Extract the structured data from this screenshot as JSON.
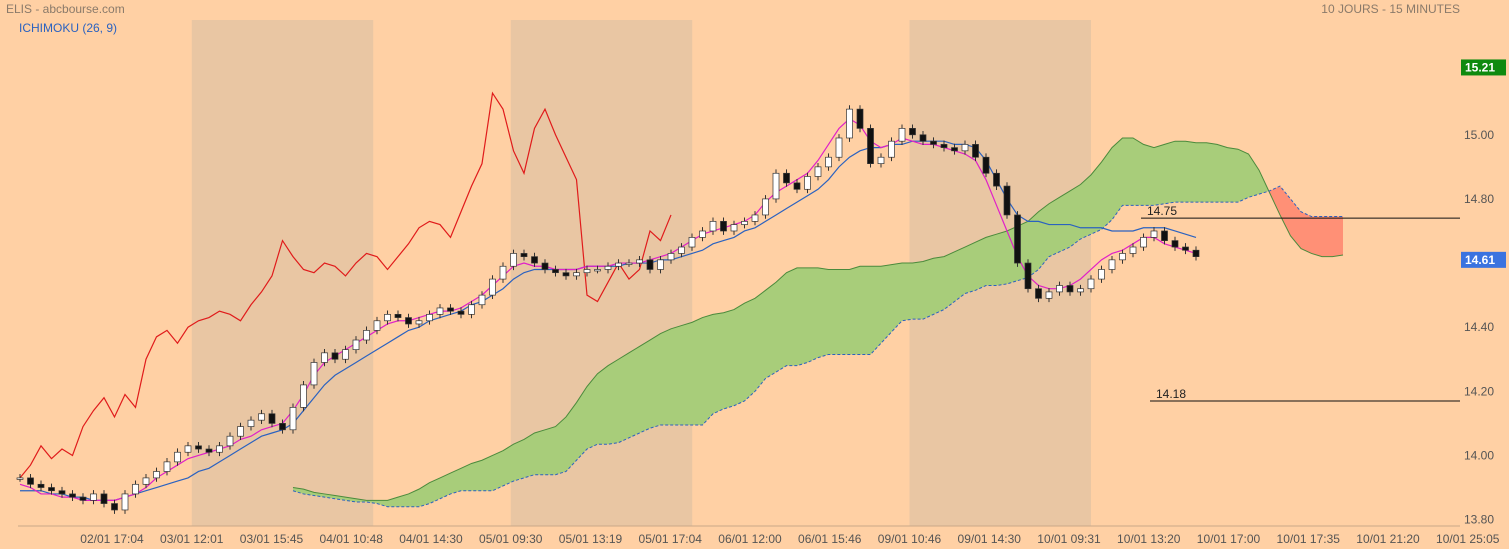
{
  "header": {
    "left": "ELIS - abcbourse.com",
    "right": "10 JOURS - 15 MINUTES",
    "indicator": "ICHIMOKU (26, 9)"
  },
  "colors": {
    "background": "#ffd0a4",
    "shade": "#e9c6a3",
    "kumo_bull": "#a8cd7a",
    "kumo_bear": "#ff9076",
    "chikou": "#e01b1b",
    "tenkan": "#e020c8",
    "kijun": "#2b62c0",
    "last_price_badge": "#3a73e0",
    "high_badge": "#0f8a0f"
  },
  "chart_data": {
    "type": "candlestick",
    "title": "ELIS",
    "subtitle": "10 JOURS - 15 MINUTES",
    "indicator": "ICHIMOKU (26, 9)",
    "y_ticks": [
      "15.00",
      "14.80",
      "14.60",
      "14.40",
      "14.20",
      "14.00",
      "13.80"
    ],
    "ylim": [
      13.78,
      15.28
    ],
    "x_ticks": [
      "02/01 17:04",
      "03/01 12:01",
      "03/01 15:45",
      "04/01 10:48",
      "04/01 14:30",
      "05/01 09:30",
      "05/01 13:19",
      "05/01 17:04",
      "06/01 12:00",
      "06/01 15:46",
      "09/01 10:46",
      "09/01 14:30",
      "10/01 09:31",
      "10/01 13:20",
      "10/01 17:00",
      "10/01 17:35",
      "10/01 21:20",
      "10/01 25:05"
    ],
    "high_badge": "15.21",
    "last_badge": "14.61",
    "levels": [
      {
        "label": "14.75",
        "value": 14.74
      },
      {
        "label": "14.18",
        "value": 14.17
      }
    ],
    "shaded_sessions": [
      [
        1,
        3
      ],
      [
        5,
        7
      ],
      [
        10,
        12
      ]
    ],
    "price": [
      13.93,
      13.91,
      13.9,
      13.89,
      13.88,
      13.87,
      13.86,
      13.88,
      13.85,
      13.83,
      13.88,
      13.91,
      13.93,
      13.95,
      13.98,
      14.01,
      14.03,
      14.02,
      14.01,
      14.03,
      14.06,
      14.09,
      14.11,
      14.13,
      14.1,
      14.08,
      14.15,
      14.22,
      14.29,
      14.32,
      14.3,
      14.33,
      14.36,
      14.39,
      14.42,
      14.44,
      14.43,
      14.41,
      14.42,
      14.44,
      14.46,
      14.45,
      14.44,
      14.47,
      14.5,
      14.55,
      14.59,
      14.63,
      14.62,
      14.6,
      14.58,
      14.57,
      14.56,
      14.57,
      14.58,
      14.58,
      14.59,
      14.6,
      14.6,
      14.61,
      14.58,
      14.61,
      14.63,
      14.65,
      14.68,
      14.7,
      14.73,
      14.7,
      14.72,
      14.73,
      14.75,
      14.8,
      14.88,
      14.85,
      14.83,
      14.87,
      14.9,
      14.93,
      14.99,
      15.08,
      15.02,
      14.91,
      14.93,
      14.98,
      15.02,
      15.0,
      14.98,
      14.97,
      14.96,
      14.95,
      14.97,
      14.93,
      14.88,
      14.84,
      14.75,
      14.6,
      14.52,
      14.49,
      14.51,
      14.53,
      14.51,
      14.52,
      14.55,
      14.58,
      14.61,
      14.63,
      14.65,
      14.68,
      14.7,
      14.67,
      14.65,
      14.64,
      14.62
    ],
    "tenkan": [
      13.91,
      13.9,
      13.88,
      13.88,
      13.87,
      13.87,
      13.86,
      13.86,
      13.86,
      13.86,
      13.87,
      13.88,
      13.9,
      13.93,
      13.95,
      13.97,
      13.99,
      14.0,
      14.01,
      14.02,
      14.03,
      14.05,
      14.06,
      14.08,
      14.09,
      14.1,
      14.14,
      14.19,
      14.25,
      14.29,
      14.31,
      14.33,
      14.35,
      14.37,
      14.39,
      14.41,
      14.42,
      14.42,
      14.43,
      14.44,
      14.45,
      14.45,
      14.46,
      14.48,
      14.5,
      14.53,
      14.56,
      14.59,
      14.6,
      14.59,
      14.59,
      14.58,
      14.58,
      14.58,
      14.59,
      14.59,
      14.59,
      14.6,
      14.6,
      14.6,
      14.61,
      14.62,
      14.63,
      14.65,
      14.67,
      14.69,
      14.7,
      14.71,
      14.72,
      14.73,
      14.75,
      14.79,
      14.82,
      14.84,
      14.86,
      14.88,
      14.92,
      14.97,
      15.02,
      15.05,
      15.03,
      14.98,
      14.96,
      14.97,
      14.99,
      14.98,
      14.97,
      14.97,
      14.96,
      14.95,
      14.94,
      14.92,
      14.86,
      14.78,
      14.7,
      14.62,
      14.56,
      14.53,
      14.52,
      14.52,
      14.53,
      14.55,
      14.58,
      14.61,
      14.63,
      14.64,
      14.66,
      14.68,
      14.68,
      14.66,
      14.65,
      14.64,
      14.63
    ],
    "kijun": [
      13.89,
      13.89,
      13.89,
      13.88,
      13.88,
      13.87,
      13.87,
      13.86,
      13.86,
      13.86,
      13.87,
      13.88,
      13.89,
      13.9,
      13.91,
      13.92,
      13.93,
      13.95,
      13.96,
      13.98,
      14.0,
      14.02,
      14.04,
      14.06,
      14.07,
      14.08,
      14.1,
      14.14,
      14.18,
      14.22,
      14.25,
      14.27,
      14.29,
      14.31,
      14.33,
      14.35,
      14.37,
      14.39,
      14.4,
      14.42,
      14.43,
      14.44,
      14.45,
      14.47,
      14.48,
      14.5,
      14.52,
      14.55,
      14.57,
      14.58,
      14.58,
      14.58,
      14.58,
      14.58,
      14.59,
      14.59,
      14.59,
      14.59,
      14.6,
      14.6,
      14.6,
      14.61,
      14.61,
      14.62,
      14.63,
      14.64,
      14.66,
      14.67,
      14.68,
      14.7,
      14.71,
      14.73,
      14.75,
      14.77,
      14.79,
      14.81,
      14.83,
      14.86,
      14.9,
      14.93,
      14.95,
      14.96,
      14.96,
      14.97,
      14.97,
      14.98,
      14.98,
      14.98,
      14.98,
      14.97,
      14.97,
      14.96,
      14.92,
      14.86,
      14.8,
      14.75,
      14.73,
      14.73,
      14.72,
      14.72,
      14.72,
      14.71,
      14.71,
      14.71,
      14.7,
      14.7,
      14.7,
      14.71,
      14.71,
      14.71,
      14.7,
      14.69,
      14.68
    ],
    "chikou": [
      13.93,
      13.97,
      14.03,
      13.99,
      14.02,
      14.0,
      14.09,
      14.14,
      14.18,
      14.12,
      14.19,
      14.15,
      14.3,
      14.37,
      14.39,
      14.35,
      14.4,
      14.42,
      14.43,
      14.45,
      14.44,
      14.42,
      14.47,
      14.51,
      14.56,
      14.67,
      14.62,
      14.58,
      14.57,
      14.6,
      14.59,
      14.56,
      14.6,
      14.63,
      14.62,
      14.58,
      14.62,
      14.66,
      14.71,
      14.73,
      14.72,
      14.68,
      14.76,
      14.84,
      14.91,
      15.13,
      15.08,
      14.95,
      14.88,
      15.02,
      15.08,
      15.0,
      14.93,
      14.86,
      14.5,
      14.48,
      14.54,
      14.6,
      14.55,
      14.58,
      14.7,
      14.67,
      14.75
    ]
  }
}
